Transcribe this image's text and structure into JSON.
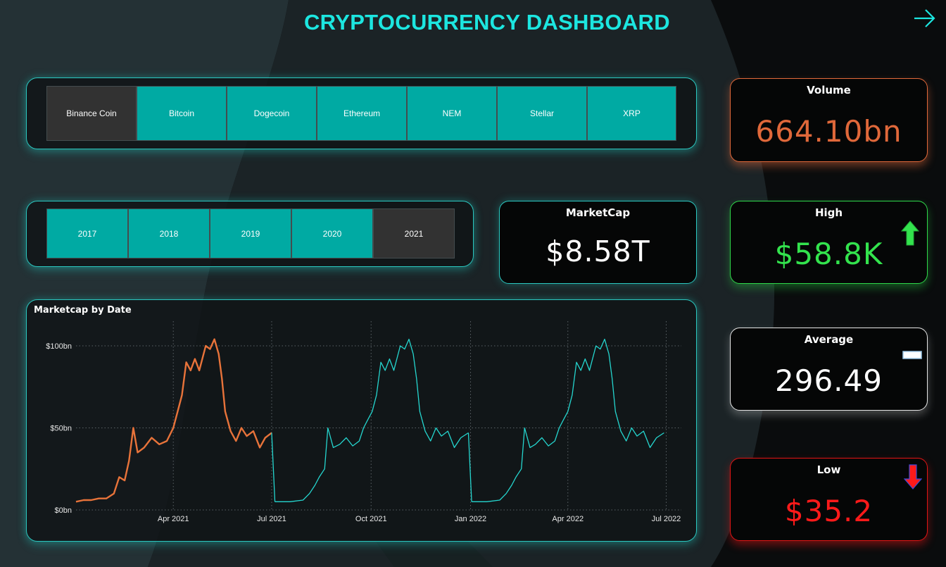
{
  "header": {
    "title": "CRYPTOCURRENCY DASHBOARD",
    "nav_icon": "arrow-right-icon"
  },
  "coin_slicer": {
    "options": [
      "Binance Coin",
      "Bitcoin",
      "Dogecoin",
      "Ethereum",
      "NEM",
      "Stellar",
      "XRP"
    ],
    "selected": "Binance Coin"
  },
  "year_slicer": {
    "options": [
      "2017",
      "2018",
      "2019",
      "2020",
      "2021"
    ],
    "selected": "2021"
  },
  "kpis": {
    "marketcap": {
      "label": "MarketCap",
      "value": "$8.58T"
    },
    "volume": {
      "label": "Volume",
      "value": "664.10bn",
      "color": "#e0683a"
    },
    "high": {
      "label": "High",
      "value": "$58.8K",
      "color": "#33e34d",
      "trend_icon": "arrow-up-icon"
    },
    "average": {
      "label": "Average",
      "value": "296.49",
      "color": "#ffffff",
      "trend_icon": "flat-bar-icon"
    },
    "low": {
      "label": "Low",
      "value": "$35.2",
      "color": "#ff1a1a",
      "trend_icon": "arrow-down-icon"
    }
  },
  "colors": {
    "accent": "#1ce6e0",
    "slicer": "#00aaa3",
    "selected_series": "#e8733a",
    "other_series": "#25d6cf"
  },
  "chart_data": {
    "type": "line",
    "title": "Marketcap by Date",
    "y_ticks": [
      "$0bn",
      "$50bn",
      "$100bn"
    ],
    "x_ticks": [
      "Apr 2021",
      "Jul 2021",
      "Oct 2021",
      "Jan 2022",
      "Apr 2022",
      "Jul 2022"
    ],
    "ylim": [
      0,
      115
    ],
    "grid": true,
    "series": [
      {
        "color": "#e8733a",
        "points": [
          [
            "2021-01-01",
            5
          ],
          [
            "2021-01-08",
            6
          ],
          [
            "2021-01-15",
            6
          ],
          [
            "2021-01-22",
            7
          ],
          [
            "2021-01-29",
            7
          ],
          [
            "2021-02-05",
            10
          ],
          [
            "2021-02-10",
            20
          ],
          [
            "2021-02-15",
            18
          ],
          [
            "2021-02-19",
            30
          ],
          [
            "2021-02-23",
            50
          ],
          [
            "2021-02-27",
            35
          ],
          [
            "2021-03-05",
            38
          ],
          [
            "2021-03-12",
            44
          ],
          [
            "2021-03-19",
            40
          ],
          [
            "2021-03-26",
            42
          ],
          [
            "2021-04-01",
            50
          ],
          [
            "2021-04-05",
            60
          ],
          [
            "2021-04-09",
            70
          ],
          [
            "2021-04-13",
            90
          ],
          [
            "2021-04-17",
            85
          ],
          [
            "2021-04-21",
            92
          ],
          [
            "2021-04-25",
            85
          ],
          [
            "2021-05-01",
            100
          ],
          [
            "2021-05-05",
            98
          ],
          [
            "2021-05-09",
            104
          ],
          [
            "2021-05-13",
            95
          ],
          [
            "2021-05-16",
            80
          ],
          [
            "2021-05-19",
            60
          ],
          [
            "2021-05-24",
            48
          ],
          [
            "2021-05-29",
            42
          ],
          [
            "2021-06-03",
            50
          ],
          [
            "2021-06-08",
            45
          ],
          [
            "2021-06-14",
            48
          ],
          [
            "2021-06-20",
            38
          ],
          [
            "2021-06-25",
            44
          ],
          [
            "2021-07-01",
            47
          ]
        ]
      },
      {
        "color": "#25d6cf",
        "points": [
          [
            "2021-07-04",
            5
          ],
          [
            "2021-07-18",
            5
          ],
          [
            "2021-07-30",
            6
          ],
          [
            "2021-08-05",
            10
          ],
          [
            "2021-08-10",
            15
          ],
          [
            "2021-08-14",
            20
          ],
          [
            "2021-08-19",
            25
          ],
          [
            "2021-08-22",
            50
          ],
          [
            "2021-08-27",
            38
          ],
          [
            "2021-09-02",
            40
          ],
          [
            "2021-09-08",
            44
          ],
          [
            "2021-09-14",
            39
          ],
          [
            "2021-09-20",
            42
          ],
          [
            "2021-09-24",
            50
          ],
          [
            "2021-09-28",
            55
          ],
          [
            "2021-10-02",
            60
          ],
          [
            "2021-10-06",
            70
          ],
          [
            "2021-10-10",
            90
          ],
          [
            "2021-10-14",
            85
          ],
          [
            "2021-10-18",
            92
          ],
          [
            "2021-10-22",
            85
          ],
          [
            "2021-10-28",
            100
          ],
          [
            "2021-11-01",
            98
          ],
          [
            "2021-11-05",
            104
          ],
          [
            "2021-11-09",
            95
          ],
          [
            "2021-11-12",
            80
          ],
          [
            "2021-11-15",
            60
          ],
          [
            "2021-11-20",
            48
          ],
          [
            "2021-11-25",
            42
          ],
          [
            "2021-11-30",
            50
          ],
          [
            "2021-12-05",
            45
          ],
          [
            "2021-12-11",
            48
          ],
          [
            "2021-12-17",
            38
          ],
          [
            "2021-12-23",
            44
          ],
          [
            "2021-12-30",
            47
          ]
        ]
      },
      {
        "color": "#25d6cf",
        "points": [
          [
            "2022-01-02",
            5
          ],
          [
            "2022-01-16",
            5
          ],
          [
            "2022-01-28",
            6
          ],
          [
            "2022-02-03",
            10
          ],
          [
            "2022-02-08",
            15
          ],
          [
            "2022-02-12",
            20
          ],
          [
            "2022-02-17",
            25
          ],
          [
            "2022-02-20",
            50
          ],
          [
            "2022-02-25",
            38
          ],
          [
            "2022-03-02",
            40
          ],
          [
            "2022-03-08",
            44
          ],
          [
            "2022-03-14",
            39
          ],
          [
            "2022-03-20",
            42
          ],
          [
            "2022-03-24",
            50
          ],
          [
            "2022-03-28",
            55
          ],
          [
            "2022-04-01",
            60
          ],
          [
            "2022-04-05",
            70
          ],
          [
            "2022-04-09",
            90
          ],
          [
            "2022-04-13",
            85
          ],
          [
            "2022-04-17",
            92
          ],
          [
            "2022-04-21",
            85
          ],
          [
            "2022-04-27",
            100
          ],
          [
            "2022-05-01",
            98
          ],
          [
            "2022-05-05",
            104
          ],
          [
            "2022-05-09",
            95
          ],
          [
            "2022-05-12",
            80
          ],
          [
            "2022-05-15",
            60
          ],
          [
            "2022-05-20",
            48
          ],
          [
            "2022-05-25",
            42
          ],
          [
            "2022-05-30",
            50
          ],
          [
            "2022-06-04",
            45
          ],
          [
            "2022-06-10",
            48
          ],
          [
            "2022-06-16",
            38
          ],
          [
            "2022-06-22",
            44
          ],
          [
            "2022-06-29",
            47
          ]
        ]
      }
    ]
  }
}
